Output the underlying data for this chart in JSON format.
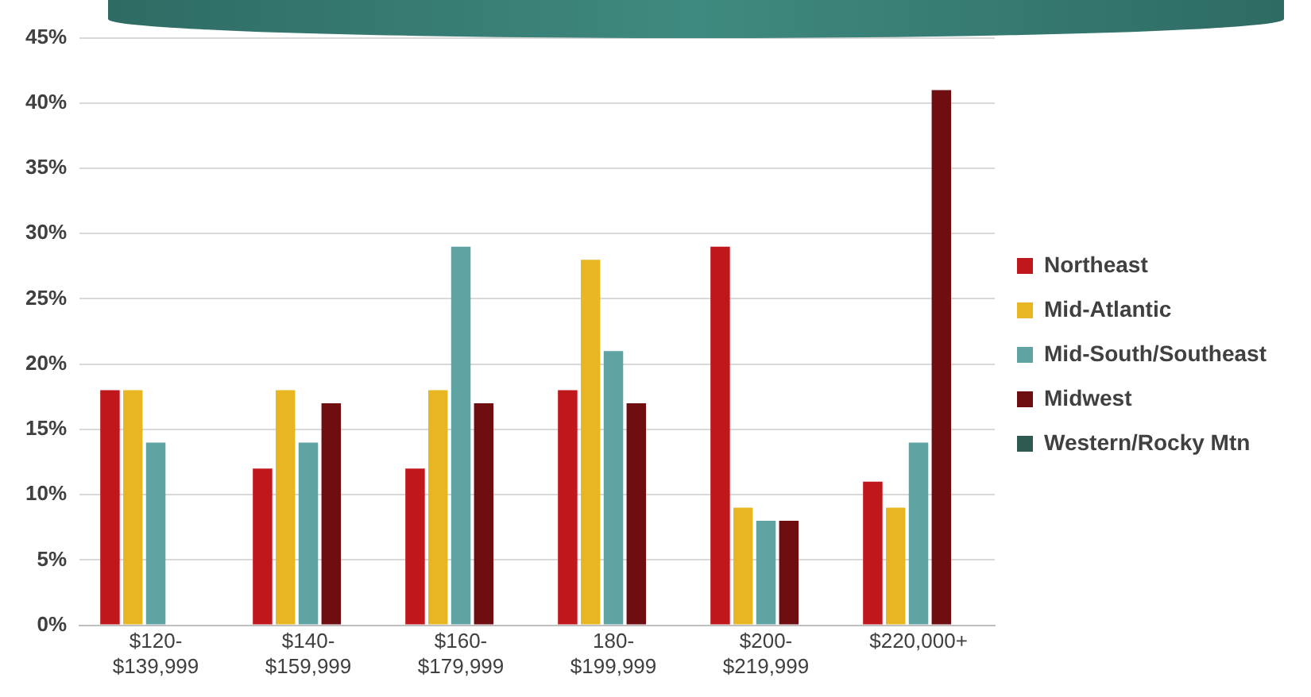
{
  "chart_data": {
    "type": "bar",
    "categories": [
      "$120-$139,999",
      "$140-$159,999",
      "$160-$179,999",
      "180-$199,999",
      "$200-$219,999",
      "$220,000+"
    ],
    "series": [
      {
        "name": "Northeast",
        "color": "#c0171c",
        "values": [
          18,
          12,
          12,
          18,
          29,
          11
        ]
      },
      {
        "name": "Mid-Atlantic",
        "color": "#e8b623",
        "values": [
          18,
          18,
          18,
          28,
          9,
          9
        ]
      },
      {
        "name": "Mid-South/Southeast",
        "color": "#5fa3a3",
        "values": [
          14,
          14,
          29,
          21,
          8,
          14
        ]
      },
      {
        "name": "Midwest",
        "color": "#6e0e10",
        "values": [
          null,
          17,
          17,
          17,
          8,
          41
        ]
      },
      {
        "name": "Western/Rocky Mtn",
        "color": "#2f5a52",
        "values": [
          null,
          null,
          null,
          null,
          null,
          null
        ]
      }
    ],
    "ylim": [
      0,
      45
    ],
    "yticks": [
      {
        "value": 0,
        "label": "0%"
      },
      {
        "value": 5,
        "label": "5%"
      },
      {
        "value": 10,
        "label": "10%"
      },
      {
        "value": 15,
        "label": "15%"
      },
      {
        "value": 20,
        "label": "20%"
      },
      {
        "value": 25,
        "label": "25%"
      },
      {
        "value": 30,
        "label": "30%"
      },
      {
        "value": 35,
        "label": "35%"
      },
      {
        "value": 40,
        "label": "40%"
      },
      {
        "value": 45,
        "label": "45%"
      }
    ],
    "grid": "y",
    "legend": "right"
  }
}
